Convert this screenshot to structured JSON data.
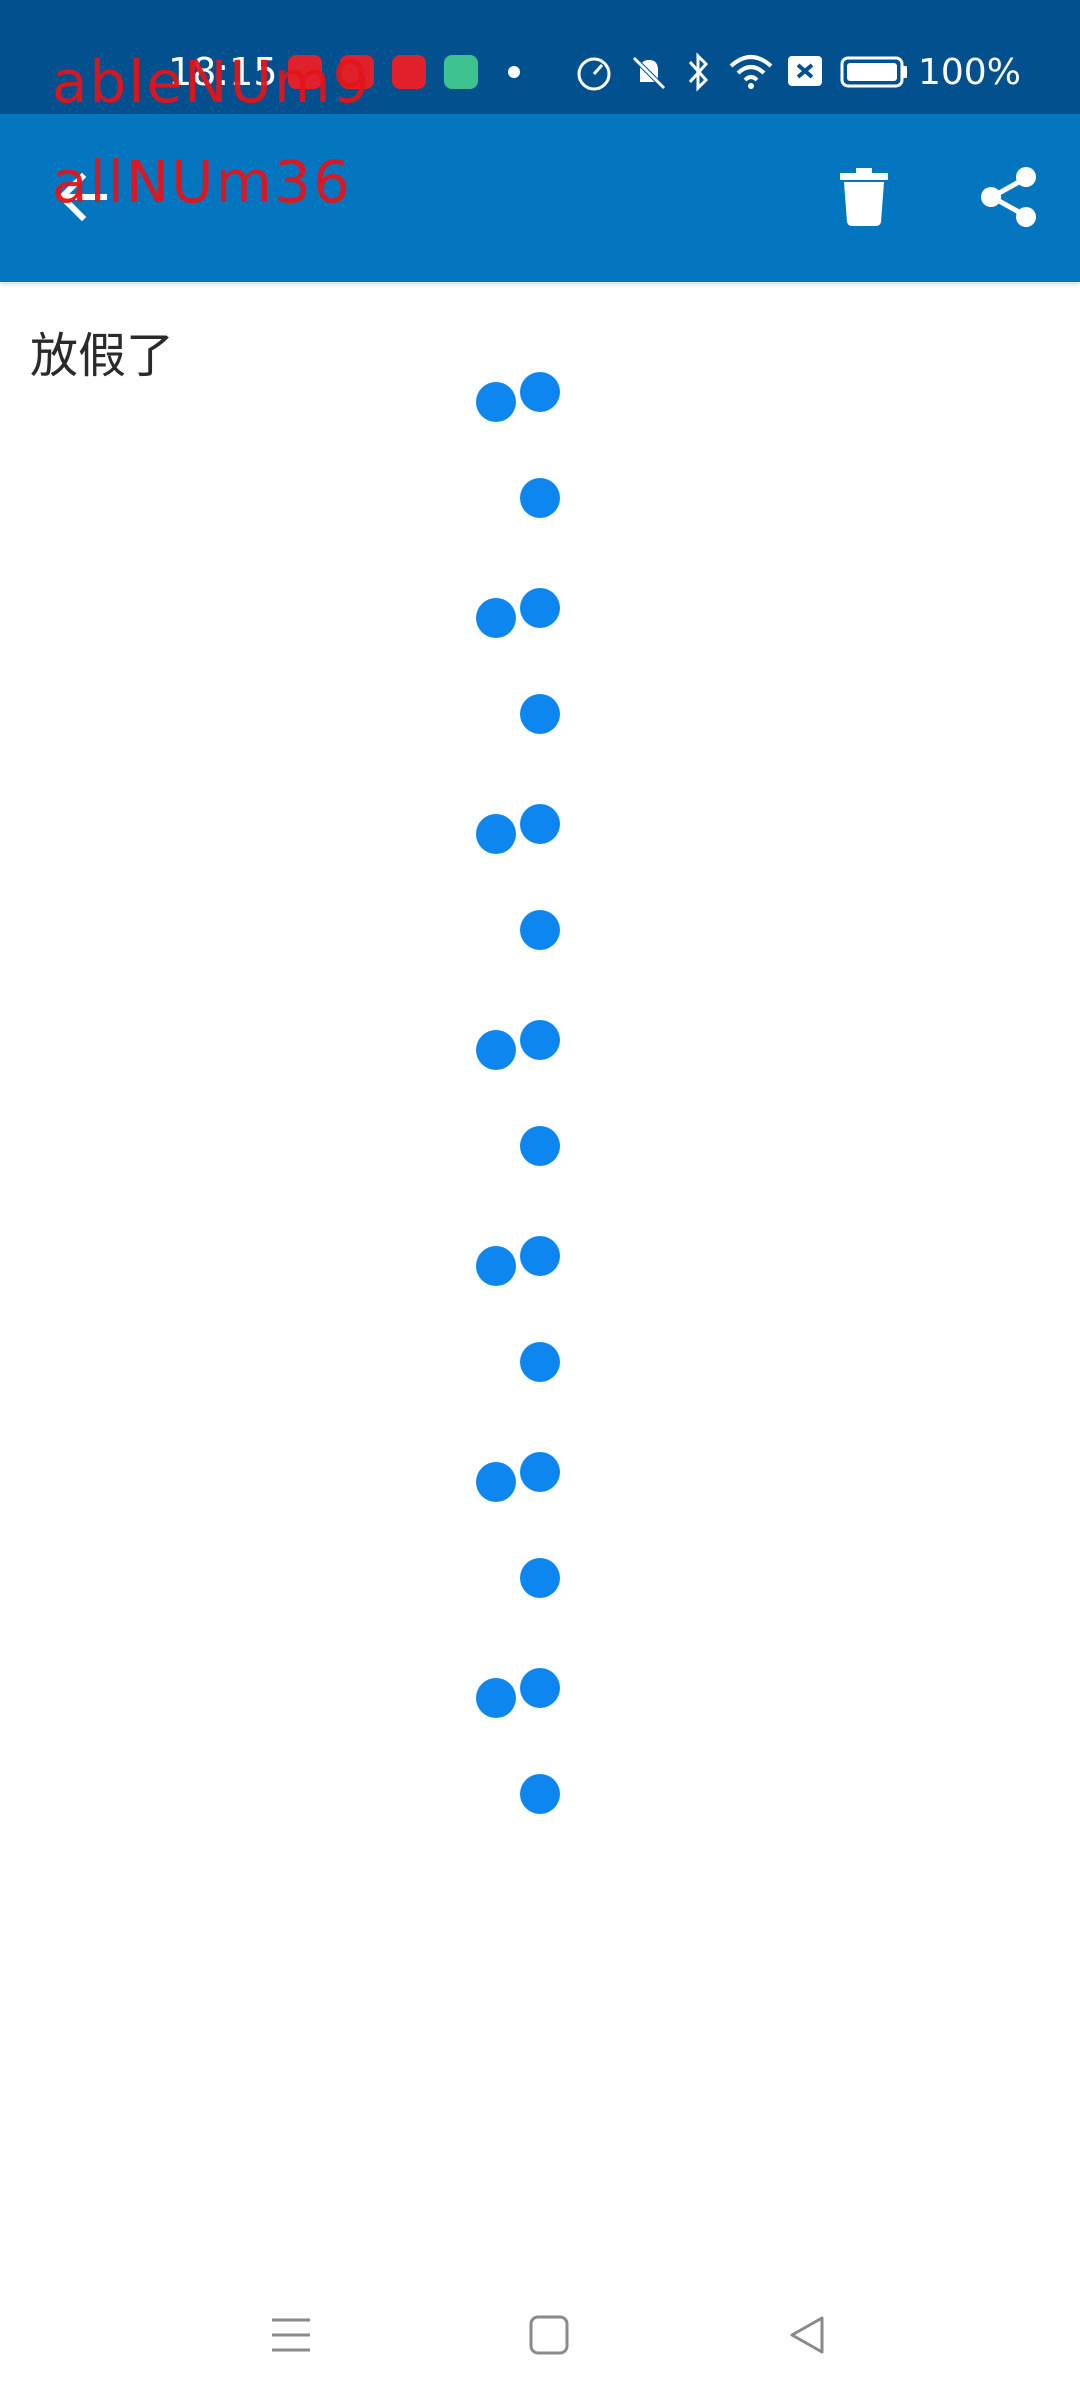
{
  "status_bar": {
    "time": "18:15",
    "battery": "100%"
  },
  "overlay": {
    "line1": "ableNUm9",
    "line2": "allNUm36"
  },
  "app_bar": {
    "back_icon": "arrow-left-icon",
    "delete_icon": "trash-icon",
    "share_icon": "share-icon"
  },
  "note": {
    "title": "放假了"
  },
  "colors": {
    "status_bar": "#03508f",
    "app_bar": "#0476c0",
    "dot": "#0d86f0"
  },
  "nav_bar": {
    "menu_icon": "menu-icon",
    "home_icon": "home-icon",
    "back_icon": "triangle-back-icon"
  }
}
